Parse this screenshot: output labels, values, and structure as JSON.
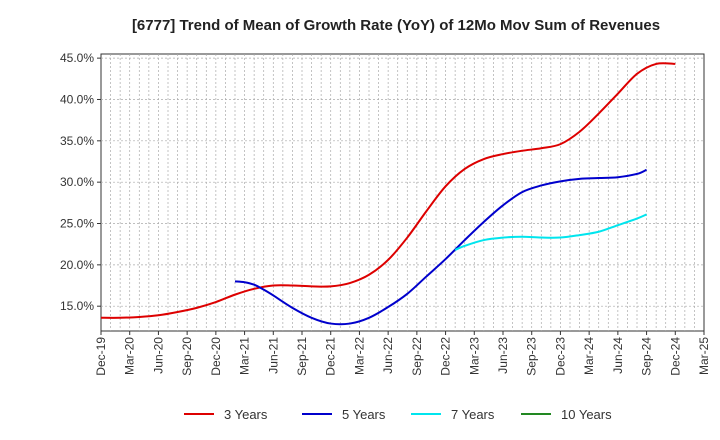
{
  "chart_data": {
    "type": "line",
    "title": "[6777]  Trend of Mean of Growth Rate (YoY) of 12Mo Mov Sum of Revenues",
    "xlabel": "",
    "ylabel": "",
    "ylim": [
      12,
      45.5
    ],
    "y_ticks": [
      15,
      20,
      25,
      30,
      35,
      40,
      45
    ],
    "y_tick_labels": [
      "15.0%",
      "20.0%",
      "25.0%",
      "30.0%",
      "35.0%",
      "40.0%",
      "45.0%"
    ],
    "x_tick_labels": [
      "Dec-19",
      "Mar-20",
      "Jun-20",
      "Sep-20",
      "Dec-20",
      "Mar-21",
      "Jun-21",
      "Sep-21",
      "Dec-21",
      "Mar-22",
      "Jun-22",
      "Sep-22",
      "Dec-22",
      "Mar-23",
      "Jun-23",
      "Sep-23",
      "Dec-23",
      "Mar-24",
      "Jun-24",
      "Sep-24",
      "Dec-24",
      "Mar-25"
    ],
    "grid": true,
    "legend_position": "bottom",
    "series": [
      {
        "name": "3 Years",
        "color": "#dd0000",
        "x": [
          0,
          2,
          4,
          6,
          8,
          10,
          12,
          14,
          16,
          18,
          20,
          22,
          24,
          26,
          28,
          30,
          32,
          34,
          36,
          38,
          40,
          42,
          44,
          46,
          48,
          50,
          52,
          54,
          56,
          58,
          60
        ],
        "values": [
          13.6,
          13.6,
          13.7,
          13.9,
          14.3,
          14.8,
          15.5,
          16.4,
          17.1,
          17.5,
          17.5,
          17.4,
          17.4,
          17.8,
          18.8,
          20.6,
          23.3,
          26.5,
          29.5,
          31.6,
          32.8,
          33.4,
          33.8,
          34.1,
          34.6,
          36.1,
          38.3,
          40.7,
          43.1,
          44.3,
          44.3
        ]
      },
      {
        "name": "5 Years",
        "color": "#0000cc",
        "x": [
          14,
          15,
          16,
          17,
          18,
          20,
          22,
          24,
          26,
          28,
          30,
          32,
          34,
          36,
          38,
          40,
          42,
          44,
          46,
          48,
          50,
          52,
          54,
          56,
          57
        ],
        "values": [
          18.0,
          17.9,
          17.6,
          17.0,
          16.3,
          14.8,
          13.6,
          12.9,
          12.9,
          13.6,
          14.9,
          16.5,
          18.6,
          20.7,
          23.0,
          25.2,
          27.2,
          28.8,
          29.6,
          30.1,
          30.4,
          30.5,
          30.6,
          31.0,
          31.5
        ]
      },
      {
        "name": "7 Years",
        "color": "#00e5ee",
        "x": [
          37,
          38,
          40,
          42,
          44,
          46,
          48,
          50,
          52,
          54,
          56,
          57
        ],
        "values": [
          21.8,
          22.3,
          23.0,
          23.3,
          23.4,
          23.3,
          23.3,
          23.6,
          24.0,
          24.8,
          25.6,
          26.1
        ]
      },
      {
        "name": "10 Years",
        "color": "#228822",
        "x": [],
        "values": []
      }
    ]
  }
}
